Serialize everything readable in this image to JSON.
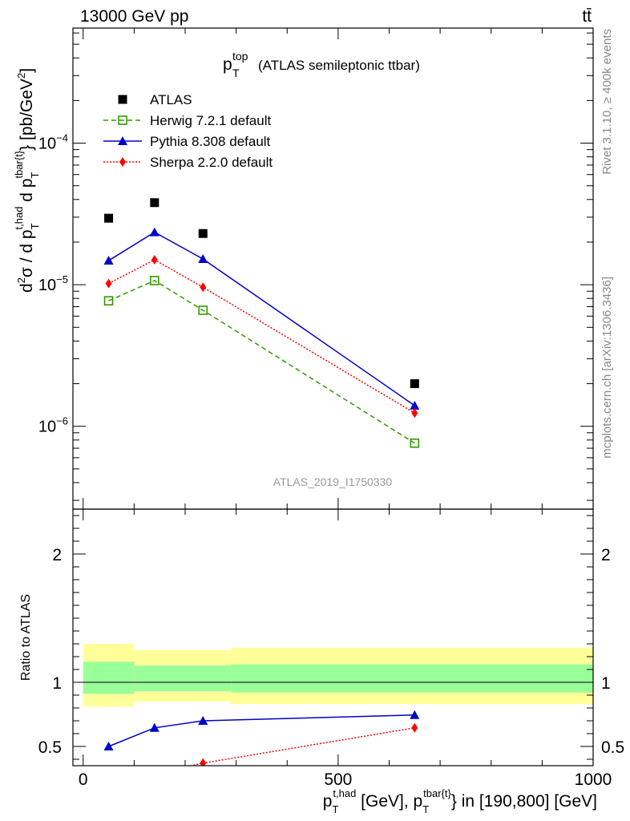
{
  "header": {
    "energy_label": "13000 GeV pp",
    "process_label": "tt̄"
  },
  "side_text": {
    "rivet": "Rivet 3.1.10, ≥ 400k events",
    "mcplots": "mcplots.cern.ch [arXiv:1306.3436]"
  },
  "analysis_id": "ATLAS_2019_I1750330",
  "colors": {
    "atlas": "#000000",
    "herwig": "#339900",
    "pythia": "#0000cc",
    "sherpa": "#ff0000",
    "band_outer": "#ffff99",
    "band_inner": "#99ff99"
  },
  "chart_data": [
    {
      "type": "scatter",
      "panel": "main",
      "title": "(ATLAS semileptonic ttbar)",
      "title_var": "p",
      "title_sup": "top",
      "title_sub": "T",
      "ylabel_parts": [
        "d",
        "2",
        "σ / d p",
        "T",
        "t,had",
        " d p",
        "T",
        "tbar{t}",
        "} [pb/GeV",
        "2",
        "]"
      ],
      "ylabel_text": "d²σ / d p_T^{t,had} d p_T^{tbar{t}} [pb/GeV²]",
      "xlim": [
        -20,
        1000
      ],
      "ylim": [
        2.6e-07,
        0.00065
      ],
      "yscale": "log",
      "yticks": [
        {
          "value": 1e-06,
          "mantissa": "10",
          "exp": "−6"
        },
        {
          "value": 1e-05,
          "mantissa": "10",
          "exp": "−5"
        },
        {
          "value": 0.0001,
          "mantissa": "10",
          "exp": "−4"
        }
      ],
      "legend_position": "top-left",
      "series": [
        {
          "name": "ATLAS",
          "key": "atlas",
          "marker": "square",
          "line": "none",
          "x": [
            50,
            140,
            235,
            650
          ],
          "y": [
            2.95e-05,
            3.8e-05,
            2.3e-05,
            2e-06
          ]
        },
        {
          "name": "Herwig 7.2.1 default",
          "key": "herwig",
          "marker": "open-square",
          "line": "dashed",
          "x": [
            50,
            140,
            235,
            650
          ],
          "y": [
            7.7e-06,
            1.07e-05,
            6.6e-06,
            7.6e-07
          ]
        },
        {
          "name": "Pythia 8.308 default",
          "key": "pythia",
          "marker": "triangle",
          "line": "solid",
          "x": [
            50,
            140,
            235,
            650
          ],
          "y": [
            1.48e-05,
            2.35e-05,
            1.52e-05,
            1.4e-06
          ]
        },
        {
          "name": "Sherpa 2.2.0 default",
          "key": "sherpa",
          "marker": "diamond",
          "line": "dotted",
          "x": [
            50,
            140,
            235,
            650
          ],
          "y": [
            1.02e-05,
            1.5e-05,
            9.6e-06,
            1.24e-06
          ]
        }
      ]
    },
    {
      "type": "line",
      "panel": "ratio",
      "ylabel": "Ratio to ATLAS",
      "xlabel_parts": [
        "p",
        "T",
        "t,had",
        " [GeV], p",
        "T",
        "tbar{t}",
        "} in [190,800] [GeV]"
      ],
      "xlabel_text": "p_T^{t,had} [GeV], p_T^{tbar{t}} in [190,800] [GeV]",
      "xlim": [
        -20,
        1000
      ],
      "ylim": [
        0.35,
        2.35
      ],
      "xticks": [
        0,
        500,
        1000
      ],
      "yticks": [
        0.5,
        1,
        2
      ],
      "ytick_labels": [
        "0.5",
        "1",
        "2"
      ],
      "bands": [
        {
          "x0": 0,
          "x1": 100,
          "outer": [
            0.81,
            1.3
          ],
          "inner": [
            0.91,
            1.16
          ]
        },
        {
          "x0": 100,
          "x1": 290,
          "outer": [
            0.85,
            1.25
          ],
          "inner": [
            0.93,
            1.13
          ]
        },
        {
          "x0": 290,
          "x1": 1000,
          "outer": [
            0.83,
            1.27
          ],
          "inner": [
            0.92,
            1.14
          ]
        }
      ],
      "series": [
        {
          "name": "Pythia 8.308 default",
          "key": "pythia",
          "marker": "triangle",
          "line": "solid",
          "x": [
            50,
            140,
            235,
            650
          ],
          "y": [
            0.5,
            0.645,
            0.7,
            0.745
          ]
        },
        {
          "name": "Sherpa 2.2.0 default",
          "key": "sherpa",
          "marker": "diamond",
          "line": "dotted",
          "x": [
            130,
            235,
            650
          ],
          "y": [
            0.28,
            0.37,
            0.645
          ]
        }
      ]
    }
  ]
}
